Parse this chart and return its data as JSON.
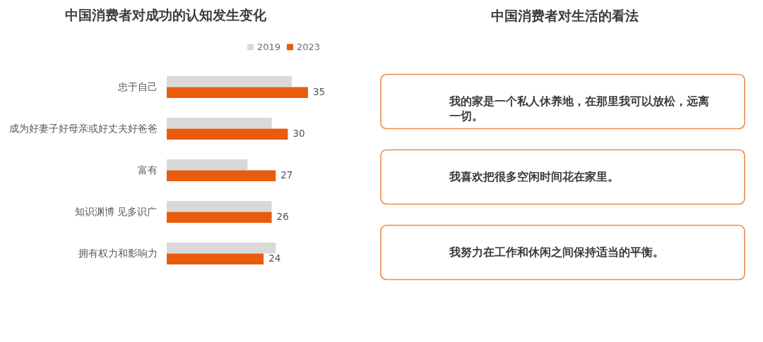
{
  "chart_data": [
    {
      "type": "bar",
      "orientation": "horizontal",
      "title": "中国消费者对成功的认知发生变化",
      "categories": [
        "忠于自己",
        "成为好妻子好母亲或好丈夫好爸爸",
        "富有",
        "知识渊博 见多识广",
        "拥有权力和影响力"
      ],
      "series": [
        {
          "name": "2019",
          "color": "#d9d9d9",
          "values": [
            31,
            26,
            20,
            26,
            27
          ]
        },
        {
          "name": "2023",
          "color": "#e85c0d",
          "values": [
            35,
            30,
            27,
            26,
            24
          ],
          "value_labels": [
            "35",
            "30",
            "27",
            "26",
            "24"
          ]
        }
      ],
      "legend": "top right",
      "tick_labels": "y"
    },
    {
      "type": "other",
      "title": "中国消费者对生活的看法",
      "annotations": [
        "我的家是一个私人休养地，在那里我可以放松，远离一切。",
        "我喜欢把很多空闲时间花在家里。",
        "我努力在工作和休闲之间保持适当的平衡。"
      ]
    }
  ]
}
